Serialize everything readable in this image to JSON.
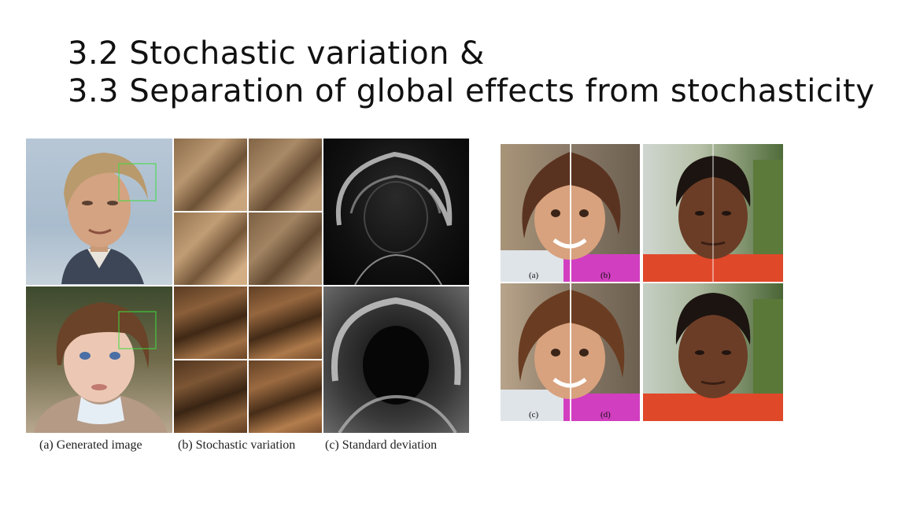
{
  "slide": {
    "title_line1": "3.2 Stochastic variation &",
    "title_line2": "3.3 Separation of global effects from stochasticity"
  },
  "figure_left": {
    "captions": [
      "(a) Generated image",
      "(b) Stochastic variation",
      "(c) Standard deviation"
    ]
  },
  "figure_right": {
    "labels": [
      "(a)",
      "(b)",
      "(c)",
      "(d)"
    ]
  },
  "colors": {
    "crop_box": "#3fdc3f"
  }
}
